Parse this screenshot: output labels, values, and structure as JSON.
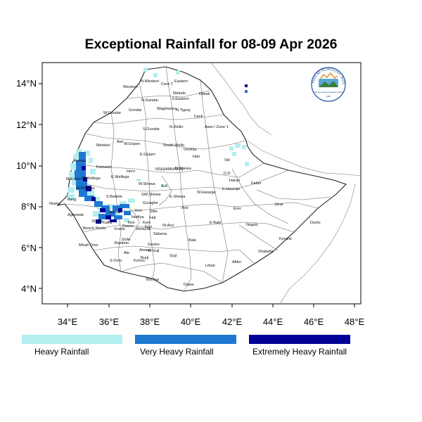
{
  "title": "Exceptional Rainfall for 08-09 Apr 2026",
  "axes": {
    "lat_ticks": [
      "14°N",
      "12°N",
      "10°N",
      "8°N",
      "6°N",
      "4°N"
    ],
    "lon_ticks": [
      "34°E",
      "36°E",
      "38°E",
      "40°E",
      "42°E",
      "44°E",
      "46°E",
      "48°E"
    ]
  },
  "logo": {
    "arc_text": "ETHIOPIAN METEOROLOGY INSTITUTE",
    "sub_text": "Ethiopian Meteorological Institute",
    "year_text": "1980"
  },
  "legend": [
    {
      "label": "Heavy Rainfall",
      "color": "#b4eeee"
    },
    {
      "label": "Very Heavy Rainfall",
      "color": "#1e78d2"
    },
    {
      "label": "Extremely Heavy Rainfall",
      "color": "#000096"
    }
  ],
  "regions": [
    "Western",
    "N.Western",
    "Cent.T",
    "Eastern",
    "Mekele",
    "S.Eastern",
    "Kilbati",
    "N.Gondar",
    "W.Gondar",
    "Gondar",
    "WagHamra",
    "N.Tigray",
    "Fanti",
    "Awsi / Zone 1",
    "S.Gondar",
    "N.Wollo",
    "Metekel",
    "Awi",
    "W.Gojam",
    "South Wello",
    "Oromia",
    "E.Gojam",
    "Hari",
    "Siti",
    "Assosa",
    "Kamashi",
    "Horo",
    "NSH(AMHARA)",
    "N.Shewa",
    "D.D",
    "Harari",
    "M.Komo",
    "W.Wellega",
    "E.Wellega",
    "W.Shewa",
    "A.A",
    "E.Harerge",
    "W.Hararge",
    "Fafan",
    "Nuwer",
    "W.Wellega",
    "Itang",
    "S.Bedele",
    "SW.Shewa",
    "E.Shewa",
    "Guraghe",
    "Arsi",
    "Jarar",
    "Agnewak",
    "Jimma",
    "Yem",
    "Silte",
    "Hadiya",
    "Hal",
    "Kem",
    "Tem",
    "Kori",
    "Korahe",
    "Erer",
    "Doolo",
    "Sheka",
    "Bench Sheko",
    "Konta",
    "Kaffa",
    "Dawro",
    "Wolayita",
    "W.Arsi",
    "E.Bale",
    "Nogob",
    "Sidama",
    "Mirab Omo",
    "Gofa",
    "Gedeo",
    "Bale",
    "Shabelle",
    "S.Omo",
    "Basketo",
    "Amaro",
    "W.Guji",
    "Burji",
    "Ale",
    "Konso",
    "Guji",
    "Liban",
    "Afder",
    "Borena",
    "Dawa"
  ]
}
